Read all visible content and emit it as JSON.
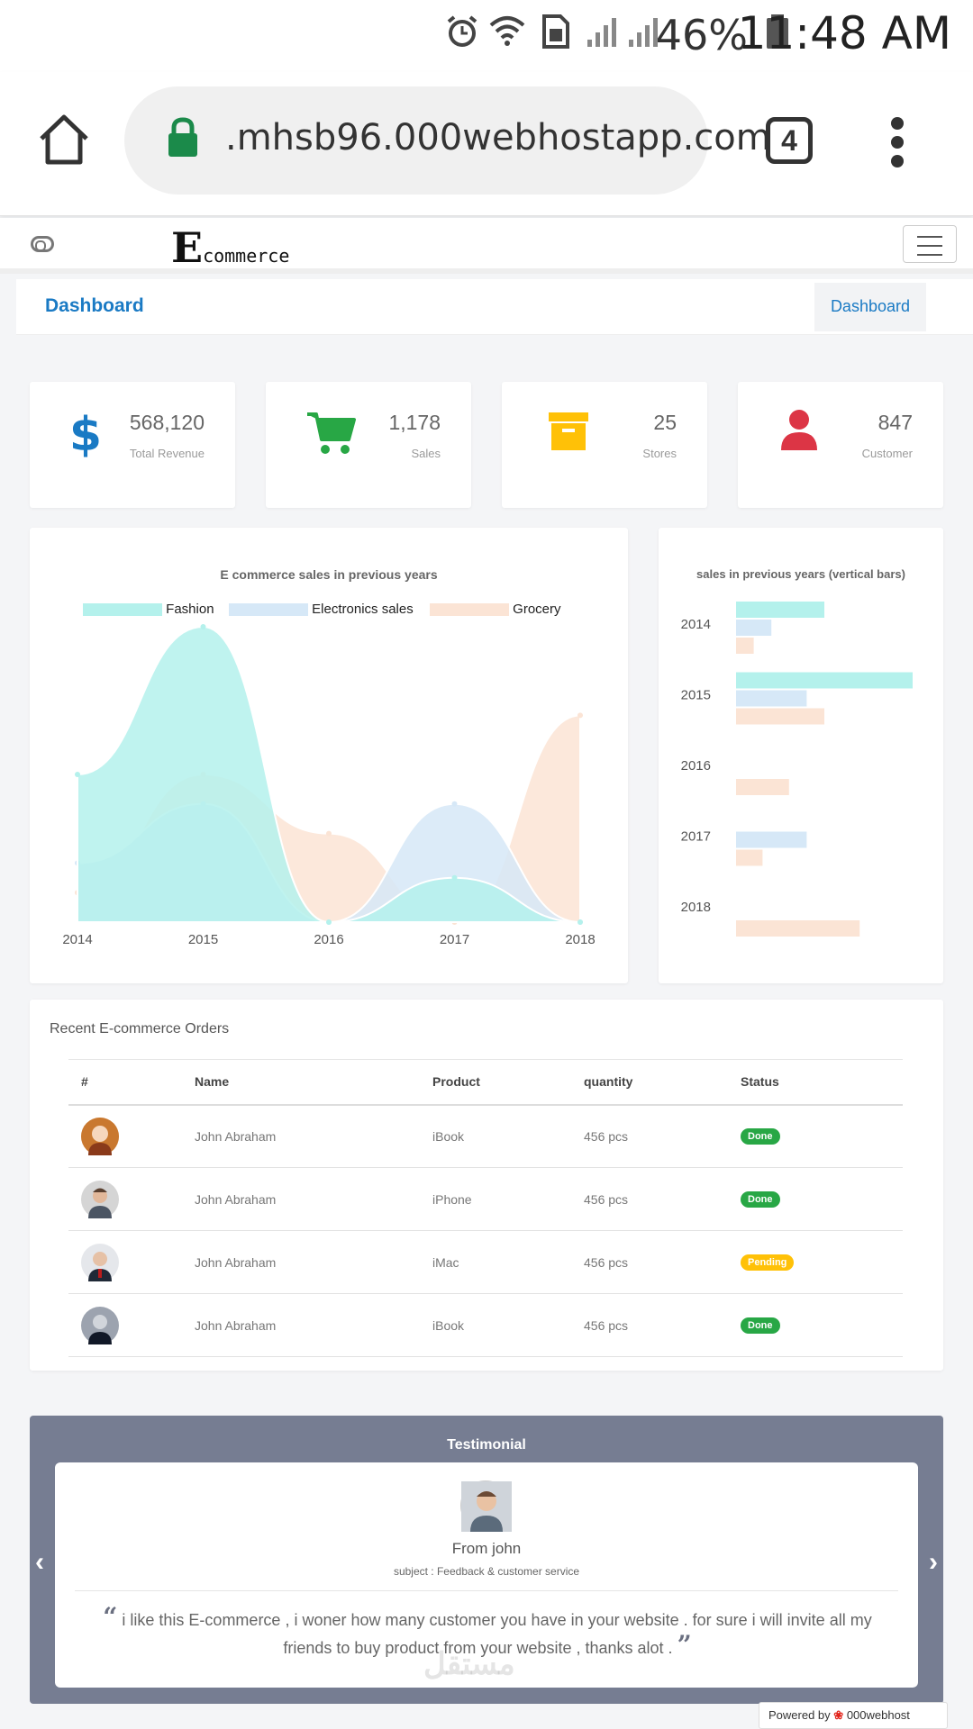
{
  "statusbar": {
    "battery": "46%",
    "time": "11:48 AM"
  },
  "browser": {
    "url": ".mhsb96.000webhostapp.com",
    "tab_count": "4"
  },
  "app": {
    "logo_big": "E",
    "logo_small": "commerce"
  },
  "breadcrumb": {
    "title": "Dashboard",
    "right": "Dashboard"
  },
  "stats": [
    {
      "value": "568,120",
      "label": "Total Revenue",
      "icon": "dollar-icon",
      "color": "#1a7ac4"
    },
    {
      "value": "1,178",
      "label": "Sales",
      "icon": "cart-icon",
      "color": "#28a745"
    },
    {
      "value": "25",
      "label": "Stores",
      "icon": "archive-icon",
      "color": "#ffc107"
    },
    {
      "value": "847",
      "label": "Customer",
      "icon": "user-icon",
      "color": "#dc3545"
    }
  ],
  "chart_data": [
    {
      "type": "area",
      "title": "E commerce sales in previous years",
      "x": [
        "2014",
        "2015",
        "2016",
        "2017",
        "2018"
      ],
      "legend_position": "top",
      "series": [
        {
          "name": "Fashion",
          "values": [
            50,
            100,
            0,
            15,
            0
          ],
          "color": "#b4f1ec"
        },
        {
          "name": "Electronics sales",
          "values": [
            20,
            40,
            0,
            40,
            0
          ],
          "color": "#d6e8f7"
        },
        {
          "name": "Grocery",
          "values": [
            10,
            50,
            30,
            0,
            70
          ],
          "color": "#fbe4d5"
        }
      ],
      "ylim": [
        0,
        100
      ]
    },
    {
      "type": "bar",
      "orientation": "horizontal",
      "title": "sales in previous years (vertical bars)",
      "categories": [
        "2014",
        "2015",
        "2016",
        "2017",
        "2018"
      ],
      "series": [
        {
          "name": "Fashion",
          "values": [
            50,
            100,
            0,
            0,
            0
          ],
          "color": "#b4f1ec"
        },
        {
          "name": "Electronics sales",
          "values": [
            20,
            40,
            0,
            40,
            0
          ],
          "color": "#d6e8f7"
        },
        {
          "name": "Grocery",
          "values": [
            10,
            50,
            30,
            15,
            70
          ],
          "color": "#fbe4d5"
        }
      ],
      "xlim": [
        0,
        100
      ]
    }
  ],
  "orders": {
    "title": "Recent E-commerce Orders",
    "headers": [
      "#",
      "Name",
      "Product",
      "quantity",
      "Status"
    ],
    "rows": [
      {
        "name": "John Abraham",
        "product": "iBook",
        "quantity": "456 pcs",
        "status": "Done"
      },
      {
        "name": "John Abraham",
        "product": "iPhone",
        "quantity": "456 pcs",
        "status": "Done"
      },
      {
        "name": "John Abraham",
        "product": "iMac",
        "quantity": "456 pcs",
        "status": "Pending"
      },
      {
        "name": "John Abraham",
        "product": "iBook",
        "quantity": "456 pcs",
        "status": "Done"
      }
    ]
  },
  "testimonial": {
    "title": "Testimonial",
    "name": "From john",
    "subject": "subject : Feedback & customer service",
    "quote": "i like this E-commerce , i woner how many customer you have in your website . for sure i will invite all my friends to buy product from your website , thanks alot ."
  },
  "watermark": "مستقل",
  "powered_by": "Powered by",
  "powered_brand": "000webhost"
}
